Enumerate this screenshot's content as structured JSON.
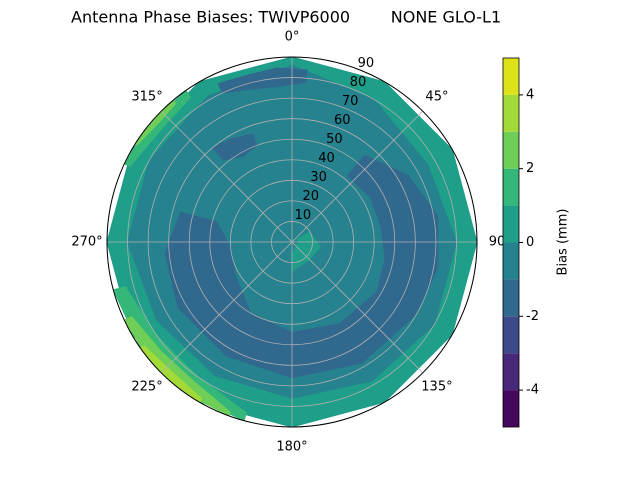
{
  "chart_data": {
    "type": "polar-contour",
    "title": "Antenna Phase Biases: TWIVP6000        NONE GLO-L1",
    "rlim": [
      0,
      90
    ],
    "rticks": [
      10,
      20,
      30,
      40,
      50,
      60,
      70,
      80,
      90
    ],
    "thetaticks": [
      {
        "value": 0,
        "label": "0°"
      },
      {
        "value": 45,
        "label": "45°"
      },
      {
        "value": 90,
        "label": "90"
      },
      {
        "value": 135,
        "label": "135°"
      },
      {
        "value": 180,
        "label": "180°"
      },
      {
        "value": 225,
        "label": "225°"
      },
      {
        "value": 270,
        "label": "270°"
      },
      {
        "value": 315,
        "label": "315°"
      }
    ],
    "grid": true,
    "regions": [
      {
        "value": 0.5,
        "az": [
          0,
          30,
          60,
          90,
          120,
          150,
          180,
          210,
          240,
          270,
          300,
          330
        ],
        "r": [
          90,
          90,
          90,
          90,
          90,
          90,
          90,
          90,
          90,
          90,
          90,
          90
        ]
      },
      {
        "value": 1.5,
        "az": [
          195,
          215,
          235,
          255,
          255,
          235,
          215,
          195
        ],
        "r": [
          90,
          90,
          90,
          90,
          84,
          80,
          80,
          86
        ]
      },
      {
        "value": 2.5,
        "az": [
          200,
          215,
          230,
          245,
          245,
          230,
          215,
          200
        ],
        "r": [
          90,
          90,
          90,
          90,
          86,
          83,
          83,
          88
        ]
      },
      {
        "value": 3.5,
        "az": [
          210,
          222,
          235,
          235,
          222,
          210
        ],
        "r": [
          90,
          90,
          90,
          88,
          86,
          88
        ]
      },
      {
        "value": 1.5,
        "az": [
          295,
          310,
          325,
          325,
          310,
          295
        ],
        "r": [
          90,
          90,
          90,
          86,
          84,
          87
        ]
      },
      {
        "value": 2.5,
        "az": [
          302,
          312,
          320,
          320,
          312,
          302
        ],
        "r": [
          90,
          90,
          90,
          88,
          87,
          89
        ]
      },
      {
        "value": -0.5,
        "az": [
          0,
          30,
          60,
          90,
          120,
          150,
          180,
          210,
          240,
          270,
          300,
          330
        ],
        "r": [
          86,
          80,
          76,
          80,
          80,
          78,
          76,
          75,
          76,
          80,
          80,
          82
        ]
      },
      {
        "value": -1.5,
        "az": [
          40,
          60,
          80,
          100,
          120,
          150,
          180,
          210,
          240,
          265,
          285,
          285,
          265,
          240,
          210,
          180,
          150,
          120,
          100,
          80,
          60,
          40
        ],
        "r": [
          55,
          65,
          72,
          72,
          70,
          68,
          66,
          64,
          64,
          62,
          56,
          38,
          30,
          32,
          40,
          44,
          46,
          48,
          46,
          44,
          44,
          42
        ]
      },
      {
        "value": -1.5,
        "az": [
          335,
          345,
          355,
          5,
          5,
          355,
          345,
          335
        ],
        "r": [
          85,
          84,
          85,
          84,
          78,
          76,
          77,
          80
        ]
      },
      {
        "value": -1.5,
        "az": [
          320,
          330,
          340,
          340,
          330,
          320
        ],
        "r": [
          60,
          58,
          56,
          50,
          48,
          52
        ]
      },
      {
        "value": 0.5,
        "az": [
          60,
          100,
          140,
          180,
          180,
          140,
          100,
          60
        ],
        "r": [
          10,
          14,
          12,
          14,
          6,
          3,
          3,
          3
        ]
      }
    ],
    "colorbar": {
      "label": "Bias (mm)",
      "levels": [
        -5,
        -4,
        -3,
        -2,
        -1,
        0,
        1,
        2,
        3,
        4,
        5
      ],
      "ticks": [
        -4,
        -2,
        0,
        2,
        4
      ],
      "colors": [
        "#46085c",
        "#482878",
        "#3e4989",
        "#31688e",
        "#26828e",
        "#1f9e89",
        "#35b779",
        "#6ece58",
        "#a2da37",
        "#dde318"
      ]
    }
  }
}
